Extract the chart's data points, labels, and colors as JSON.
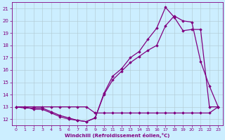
{
  "xlabel": "Windchill (Refroidissement éolien,°C)",
  "bg_color": "#cceeff",
  "line_color": "#800080",
  "grid_color": "#b0c8d0",
  "xlim": [
    -0.5,
    23.5
  ],
  "ylim": [
    11.5,
    21.5
  ],
  "yticks": [
    12,
    13,
    14,
    15,
    16,
    17,
    18,
    19,
    20,
    21
  ],
  "xticks": [
    0,
    1,
    2,
    3,
    4,
    5,
    6,
    7,
    8,
    9,
    10,
    11,
    12,
    13,
    14,
    15,
    16,
    17,
    18,
    19,
    20,
    21,
    22,
    23
  ],
  "line1_x": [
    0,
    1,
    2,
    3,
    4,
    5,
    6,
    7,
    8,
    9,
    10,
    11,
    12,
    13,
    14,
    15,
    16,
    17,
    18,
    19,
    20,
    21,
    22,
    23
  ],
  "line1_y": [
    13,
    13,
    12.8,
    12.8,
    12.5,
    12.2,
    12.0,
    11.9,
    11.8,
    12.1,
    14.0,
    15.2,
    15.9,
    16.6,
    17.1,
    17.6,
    18.0,
    19.6,
    20.4,
    20.0,
    19.9,
    16.7,
    14.7,
    13.0
  ],
  "line2_x": [
    0,
    1,
    2,
    3,
    4,
    5,
    6,
    7,
    8,
    9,
    10,
    11,
    12,
    13,
    14,
    15,
    16,
    17,
    18,
    19,
    20,
    21,
    22,
    23
  ],
  "line2_y": [
    13,
    12.9,
    12.9,
    12.9,
    12.6,
    12.3,
    12.1,
    11.9,
    11.8,
    12.1,
    14.1,
    15.5,
    16.1,
    17.0,
    17.5,
    18.5,
    19.4,
    21.1,
    20.3,
    19.2,
    19.3,
    19.3,
    13.0,
    13.0
  ],
  "line3_x": [
    0,
    1,
    2,
    3,
    4,
    5,
    6,
    7,
    8,
    9,
    10,
    11,
    12,
    13,
    14,
    15,
    16,
    17,
    18,
    19,
    20,
    21,
    22,
    23
  ],
  "line3_y": [
    13,
    13,
    13,
    13,
    13,
    13,
    13,
    13,
    13,
    12.5,
    12.5,
    12.5,
    12.5,
    12.5,
    12.5,
    12.5,
    12.5,
    12.5,
    12.5,
    12.5,
    12.5,
    12.5,
    12.5,
    13
  ]
}
